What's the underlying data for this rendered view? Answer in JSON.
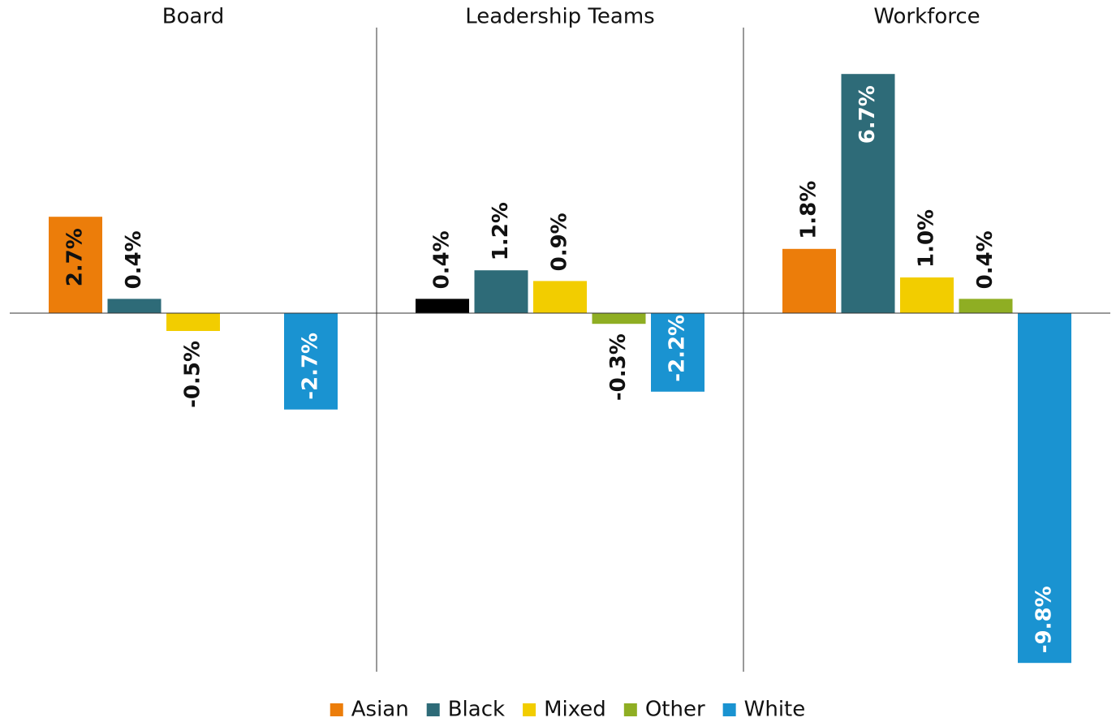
{
  "chart_data": {
    "type": "bar",
    "categories": [
      "Board",
      "Leadership Teams",
      "Workforce"
    ],
    "series": [
      {
        "name": "Asian",
        "color": "#ec7d0a",
        "colors": [
          "#ec7d0a",
          "#000000",
          "#ec7d0a"
        ],
        "values": [
          2.7,
          0.4,
          1.8
        ],
        "value_labels": [
          "2.7%",
          "0.4%",
          "1.8%"
        ]
      },
      {
        "name": "Black",
        "color": "#2e6b78",
        "values": [
          0.4,
          1.2,
          6.7
        ],
        "value_labels": [
          "0.4%",
          "1.2%",
          "6.7%"
        ]
      },
      {
        "name": "Mixed",
        "color": "#f2cd00",
        "values": [
          -0.5,
          0.9,
          1.0
        ],
        "value_labels": [
          "-0.5%",
          "0.9%",
          "1.0%"
        ]
      },
      {
        "name": "Other",
        "color": "#8fae23",
        "values": [
          null,
          -0.3,
          0.4
        ],
        "value_labels": [
          null,
          "-0.3%",
          "0.4%"
        ]
      },
      {
        "name": "White",
        "color": "#1a93d1",
        "values": [
          -2.7,
          -2.2,
          -9.8
        ],
        "value_labels": [
          "-2.7%",
          "-2.2%",
          "-9.8%"
        ]
      }
    ],
    "ylim": [
      -10,
      8
    ],
    "legend": "bottom"
  }
}
